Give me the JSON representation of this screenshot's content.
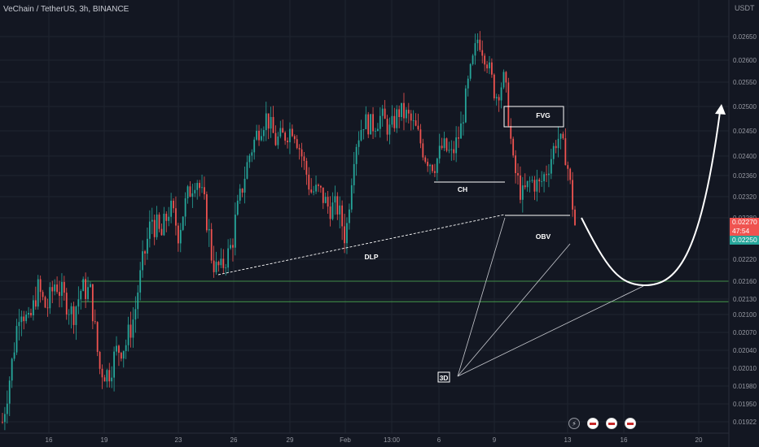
{
  "header": {
    "title": "VeChain / TetherUS, 3h, BINANCE",
    "unit": "USDT"
  },
  "colors": {
    "bg": "#131722",
    "up": "#26a69a",
    "down": "#ef5350",
    "grid": "#1f2430",
    "annotation": "#ffffff",
    "zone": "#4caf50"
  },
  "chart_data": {
    "type": "candlestick",
    "ylim": [
      0.0191,
      0.0272
    ],
    "y_ticks": [
      "0.02650",
      "0.02600",
      "0.02550",
      "0.02500",
      "0.02450",
      "0.02400",
      "0.02360",
      "0.02320",
      "0.02280",
      "0.02220",
      "0.02160",
      "0.02130",
      "0.02100",
      "0.02070",
      "0.02040",
      "0.02010",
      "0.01980",
      "0.01950",
      "0.01922"
    ],
    "x_ticks": [
      "16",
      "19",
      "23",
      "26",
      "29",
      "Feb",
      "13:00",
      "6",
      "9",
      "13",
      "16",
      "20"
    ],
    "close_path": [
      0.01922,
      0.0201,
      0.0212,
      0.0208,
      0.0215,
      0.0211,
      0.0216,
      0.0213,
      0.021,
      0.0215,
      0.0214,
      0.0201,
      0.02,
      0.0204,
      0.0205,
      0.021,
      0.0222,
      0.0228,
      0.0225,
      0.023,
      0.0226,
      0.0232,
      0.0236,
      0.023,
      0.022,
      0.022,
      0.0224,
      0.0232,
      0.024,
      0.0245,
      0.0248,
      0.0243,
      0.0244,
      0.0246,
      0.024,
      0.0233,
      0.0233,
      0.023,
      0.023,
      0.0225,
      0.0242,
      0.0247,
      0.0246,
      0.0248,
      0.0245,
      0.0249,
      0.0248,
      0.0245,
      0.024,
      0.0238,
      0.0242,
      0.024,
      0.0245,
      0.0256,
      0.0265,
      0.026,
      0.0252,
      0.0256,
      0.0238,
      0.0232,
      0.0235,
      0.0234,
      0.0238,
      0.0244,
      0.024,
      0.0227
    ],
    "price_tags": [
      {
        "value": 0.0227,
        "label": "0.02270",
        "sub": "47:54",
        "color": "#ef5350"
      },
      {
        "value": 0.0225,
        "label": "0.02250",
        "color": "#26a69a"
      }
    ],
    "zones": [
      0.0216,
      0.02125
    ],
    "annotations": [
      {
        "label": "FVG",
        "boxed": true
      },
      {
        "label": "CH"
      },
      {
        "label": "DLP"
      },
      {
        "label": "OBV"
      },
      {
        "label": "3D",
        "boxed": true
      }
    ]
  }
}
